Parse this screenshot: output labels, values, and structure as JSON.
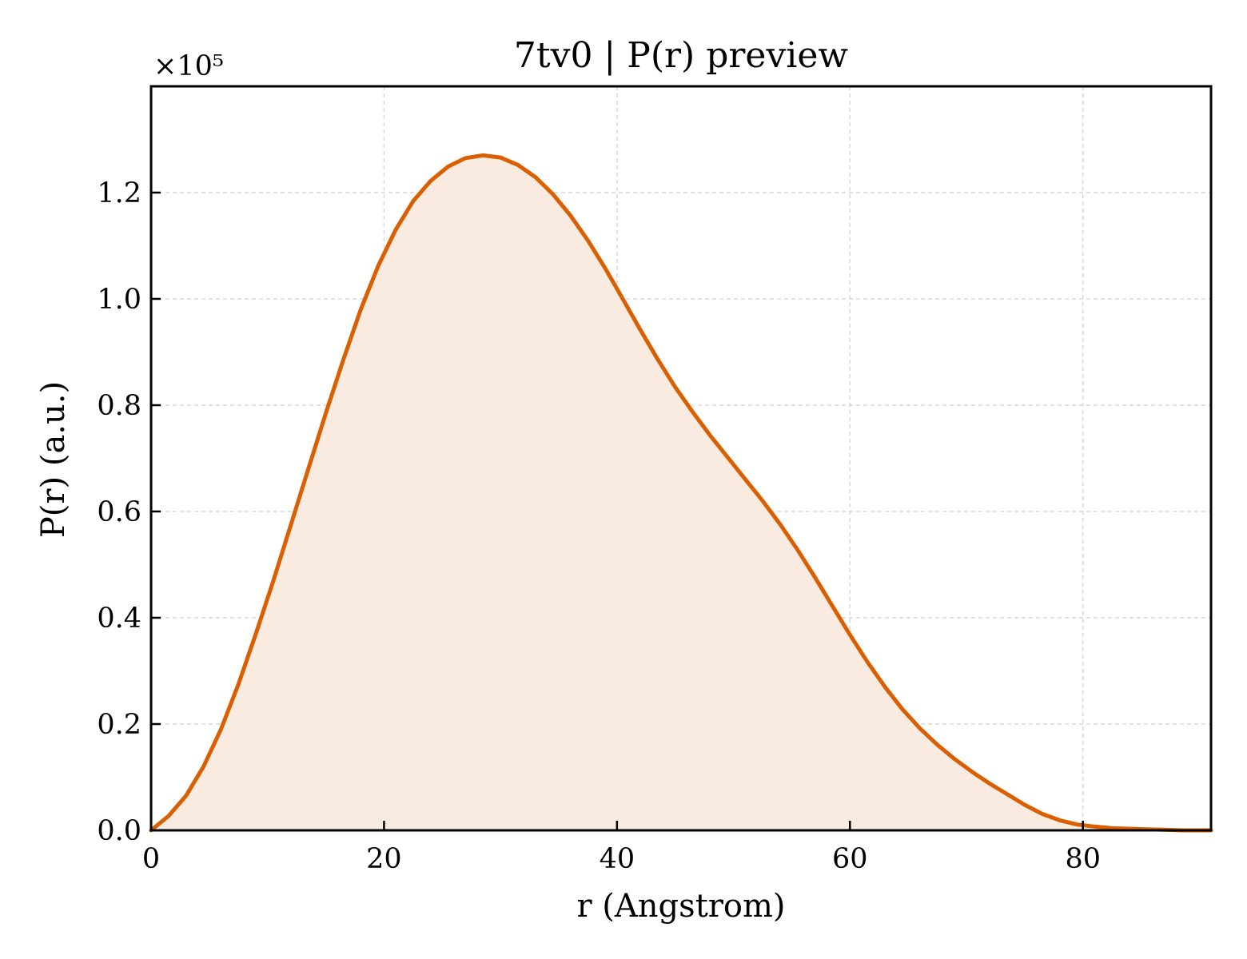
{
  "chart_data": {
    "type": "area",
    "title": "7tv0 | P(r) preview",
    "xlabel": "r (Angstrom)",
    "ylabel": "P(r) (a.u.)",
    "y_multiplier_label": "×10⁵",
    "xlim": [
      0,
      91
    ],
    "ylim": [
      0,
      1.4
    ],
    "xticks": [
      0,
      20,
      40,
      60,
      80
    ],
    "xtick_labels": [
      "0",
      "20",
      "40",
      "60",
      "80"
    ],
    "yticks": [
      0.0,
      0.2,
      0.4,
      0.6,
      0.8,
      1.0,
      1.2
    ],
    "ytick_labels": [
      "0.0",
      "0.2",
      "0.4",
      "0.6",
      "0.8",
      "1.0",
      "1.2"
    ],
    "grid": true,
    "line_color": "#d95f02",
    "fill_color": "#f9ebe0",
    "series": [
      {
        "x": [
          0,
          1.5,
          3,
          4.5,
          6,
          7.5,
          9,
          10.5,
          12,
          13.5,
          15,
          16.5,
          18,
          19.5,
          21,
          22.5,
          24,
          25.5,
          27,
          28.5,
          30,
          31.5,
          33,
          34.5,
          36,
          37.5,
          39,
          40.5,
          42,
          43.5,
          45,
          46.5,
          48,
          49.5,
          51,
          52.5,
          54,
          55.5,
          57,
          58.5,
          60,
          61.5,
          63,
          64.5,
          66,
          67.5,
          69,
          70.5,
          72,
          73.5,
          75,
          76.5,
          78,
          79.5,
          81,
          82.5,
          84,
          85.5,
          87,
          88.5,
          90,
          91
        ],
        "y": [
          0.0,
          0.027,
          0.065,
          0.12,
          0.19,
          0.275,
          0.37,
          0.47,
          0.575,
          0.68,
          0.785,
          0.885,
          0.98,
          1.062,
          1.13,
          1.184,
          1.222,
          1.249,
          1.265,
          1.27,
          1.266,
          1.252,
          1.229,
          1.197,
          1.157,
          1.11,
          1.057,
          1.0,
          0.942,
          0.886,
          0.834,
          0.787,
          0.743,
          0.702,
          0.661,
          0.62,
          0.576,
          0.528,
          0.476,
          0.422,
          0.368,
          0.317,
          0.27,
          0.228,
          0.192,
          0.161,
          0.134,
          0.11,
          0.088,
          0.068,
          0.048,
          0.031,
          0.019,
          0.011,
          0.007,
          0.004,
          0.003,
          0.002,
          0.001,
          0.0,
          0.0,
          0.0
        ]
      }
    ]
  }
}
